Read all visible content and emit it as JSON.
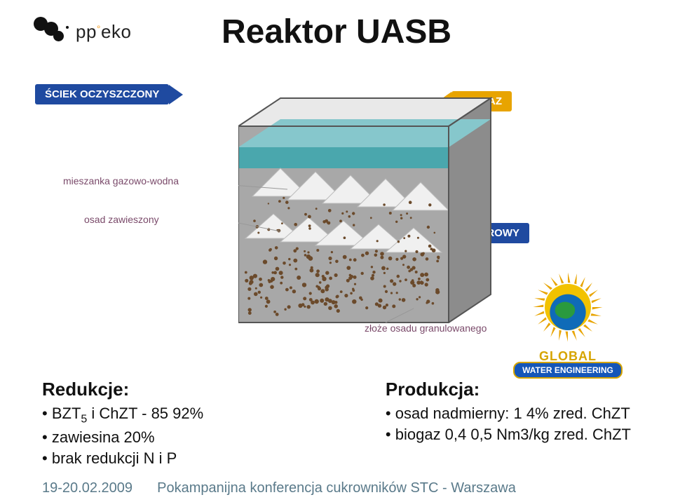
{
  "logo_text_a": "pp",
  "logo_text_b": "eko",
  "title": "Reaktor UASB",
  "labels": {
    "sciek_oczyszczony": {
      "text": "ŚCIEK OCZYSZCZONY",
      "color": "#1f4aa0",
      "fontsize": 15
    },
    "biogaz": {
      "text": "BIOGAZ",
      "color": "#e8a400",
      "fontsize": 15
    },
    "sciek_surowy": {
      "text": "ŚCIEK SUROWY",
      "color": "#1f4aa0",
      "fontsize": 15
    },
    "mieszanka": {
      "text": "mieszanka gazowo-wodna",
      "color": "#7a4a6a",
      "fontsize": 14
    },
    "osad_zaw": {
      "text": "osad zawieszony",
      "color": "#7a4a6a",
      "fontsize": 14
    },
    "zloze": {
      "text": "złoże osadu granulowanego",
      "color": "#7a4a6a",
      "fontsize": 14
    }
  },
  "reactor_style": {
    "body_fill": "#a8a8a8",
    "body_side": "#8c8c8c",
    "top_fill": "#e9e9e9",
    "water_fill": "#4aa7ad",
    "water_fill2": "#86c7cc",
    "granule_color": "#6b4a2b",
    "pipe_color": "#f0f0f0",
    "pipe_shadow": "#cfcfcf",
    "outline": "#555"
  },
  "globe": {
    "name": "GLOBAL",
    "ribbon": "WATER ENGINEERING",
    "sun": "#f2c200",
    "ray": "#e8a400",
    "ocean": "#0f6bb8",
    "land": "#2a9a3e",
    "border": "#d6a400"
  },
  "left_col": {
    "head": "Redukcje:",
    "b1_pre": "BZT",
    "b1_sub": "5",
    "b1_post": " i ChZT - 85  92%",
    "b2": "zawiesina  20%",
    "b3": "brak redukcji N i P"
  },
  "right_col": {
    "head": "Produkcja:",
    "b1": "osad nadmierny: 1  4% zred. ChZT",
    "b2": "biogaz 0,4  0,5 Nm3/kg zred. ChZT"
  },
  "footer": {
    "date": "19-20.02.2009",
    "text": "Pokampanijna konferencja cukrowników STC - Warszawa"
  }
}
